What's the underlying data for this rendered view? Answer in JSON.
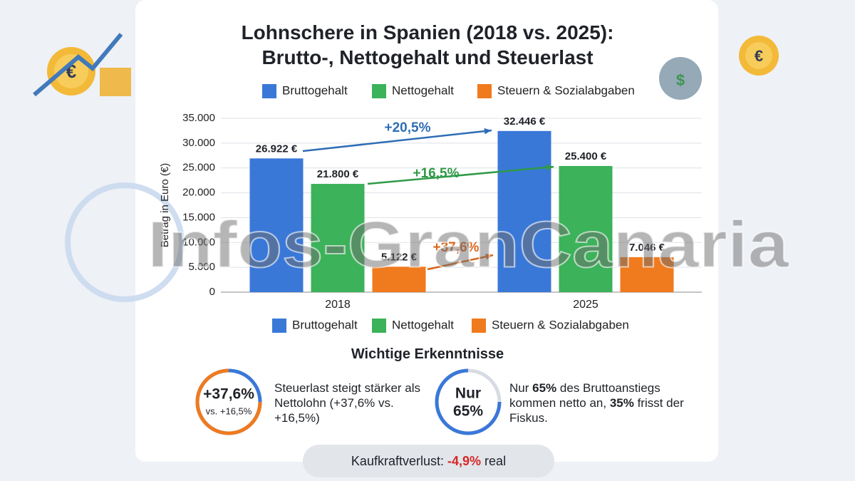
{
  "chart_data": {
    "type": "bar",
    "title": "Lohnschere in Spanien (2018 vs. 2025): Brutto-, Nettogehalt und Steuerlast",
    "y_label": "Betrag in Euro (€)",
    "categories": [
      "2018",
      "2025"
    ],
    "series": [
      {
        "name": "Bruttogehalt",
        "color": "#3a78d8",
        "values": [
          26922,
          32446
        ],
        "value_labels": [
          "26.922 €",
          "32.446 €"
        ]
      },
      {
        "name": "Nettogehalt",
        "color": "#3cb25a",
        "values": [
          21800,
          25400
        ],
        "value_labels": [
          "21.800 €",
          "25.400 €"
        ]
      },
      {
        "name": "Steuern & Sozialabgaben",
        "color": "#f07a1e",
        "values": [
          5122,
          7046
        ],
        "value_labels": [
          "5.122 €",
          "7.046 €"
        ]
      }
    ],
    "annotations": [
      {
        "text": "+20,5%",
        "color": "#2f6db5"
      },
      {
        "text": "+16,5%",
        "color": "#2f9a47"
      },
      {
        "text": "+37,6%",
        "color": "#d9661a"
      }
    ],
    "ylim": [
      0,
      35000
    ],
    "yticks": [
      0,
      {
        "value": 5000,
        "label": "5.000"
      },
      {
        "value": 10000,
        "label": "10.000"
      },
      {
        "value": 15000,
        "label": "15.000"
      },
      {
        "value": 20000,
        "label": "20.000"
      },
      {
        "value": 25000,
        "label": "25.000"
      },
      {
        "value": 30000,
        "label": "30.000"
      },
      {
        "value": 35000,
        "label": "35.000"
      }
    ],
    "grid": true,
    "legend": true
  },
  "watermark": "Infos-GranCanaria",
  "insights": {
    "title": "Wichtige Erkenntnisse",
    "items": [
      {
        "badge": [
          "+37,6%",
          "vs. +16,5%"
        ],
        "text": "Steuerlast steigt stärker als Nettolohn (+37,6% vs. +16,5%)"
      },
      {
        "badge": [
          "Nur",
          "65%"
        ],
        "text": [
          "Nur",
          "65%",
          "des Bruttoanstiegs kommen netto an,",
          "35%",
          "frisst der Fiskus."
        ]
      }
    ]
  },
  "footer": {
    "label": "Kaufkraftverlust:",
    "value": "-4,9%",
    "suffix": "real"
  }
}
